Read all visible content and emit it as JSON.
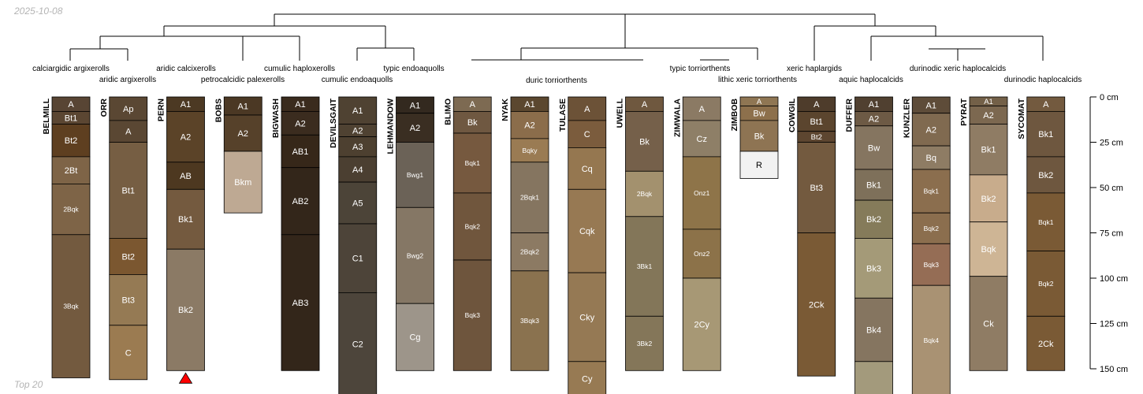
{
  "date": "2025-10-08",
  "footer": "Top 20",
  "chart_data": {
    "type": "soil-profile-sketch",
    "depth_unit": "cm",
    "depth_axis": {
      "ticks": [
        0,
        25,
        50,
        75,
        100,
        125,
        150
      ],
      "labels": [
        "0 cm",
        "25 cm",
        "50 cm",
        "75 cm",
        "100 cm",
        "125 cm",
        "150 cm"
      ]
    },
    "classification_labels": [
      "calciargidic argixerolls",
      "aridic argixerolls",
      "aridic calcixerolls",
      "petrocalcidic palexerolls",
      "cumulic haploxerolls",
      "cumulic endoaquolls",
      "typic endoaquolls",
      "duric torriorthents",
      "typic torriorthents",
      "lithic xeric torriorthents",
      "xeric haplargids",
      "aquic haplocalcids",
      "durinodic xeric haplocalcids",
      "durinodic haplocalcids"
    ],
    "profiles": [
      {
        "name": "BELMILL",
        "horizons": [
          {
            "name": "A",
            "top": 0,
            "bottom": 8,
            "color": "#584534"
          },
          {
            "name": "Bt1",
            "top": 8,
            "bottom": 15,
            "color": "#5b4632"
          },
          {
            "name": "Bt2",
            "top": 15,
            "bottom": 33,
            "color": "#5e3f20"
          },
          {
            "name": "2Bt",
            "top": 33,
            "bottom": 48,
            "color": "#7e6447"
          },
          {
            "name": "2Bqk",
            "top": 48,
            "bottom": 76,
            "color": "#7e6447"
          },
          {
            "name": "3Bqk",
            "top": 76,
            "bottom": 155,
            "color": "#735a3f"
          }
        ]
      },
      {
        "name": "ORR",
        "horizons": [
          {
            "name": "Ap",
            "top": 0,
            "bottom": 13,
            "color": "#5a4733"
          },
          {
            "name": "A",
            "top": 13,
            "bottom": 25,
            "color": "#5a4733"
          },
          {
            "name": "Bt1",
            "top": 25,
            "bottom": 78,
            "color": "#765e43"
          },
          {
            "name": "Bt2",
            "top": 78,
            "bottom": 98,
            "color": "#7b5730"
          },
          {
            "name": "Bt3",
            "top": 98,
            "bottom": 126,
            "color": "#957a54"
          },
          {
            "name": "C",
            "top": 126,
            "bottom": 156,
            "color": "#9b7b51"
          }
        ]
      },
      {
        "name": "PERN",
        "horizons": [
          {
            "name": "A1",
            "top": 0,
            "bottom": 8,
            "color": "#4c3923"
          },
          {
            "name": "A2",
            "top": 8,
            "bottom": 36,
            "color": "#5b4328"
          },
          {
            "name": "AB",
            "top": 36,
            "bottom": 51,
            "color": "#4d3820"
          },
          {
            "name": "Bk1",
            "top": 51,
            "bottom": 84,
            "color": "#745a3f"
          },
          {
            "name": "Bk2",
            "top": 84,
            "bottom": 151,
            "color": "#8b7a65"
          }
        ]
      },
      {
        "name": "BOBS",
        "horizons": [
          {
            "name": "A1",
            "top": 0,
            "bottom": 10,
            "color": "#4b3824"
          },
          {
            "name": "A2",
            "top": 10,
            "bottom": 30,
            "color": "#56412a"
          },
          {
            "name": "Bkm",
            "top": 30,
            "bottom": 64,
            "color": "#bea993"
          }
        ]
      },
      {
        "name": "BIGWASH",
        "horizons": [
          {
            "name": "A1",
            "top": 0,
            "bottom": 8,
            "color": "#3a2b1d"
          },
          {
            "name": "A2",
            "top": 8,
            "bottom": 21,
            "color": "#3b2c1f"
          },
          {
            "name": "AB1",
            "top": 21,
            "bottom": 39,
            "color": "#362719"
          },
          {
            "name": "AB2",
            "top": 39,
            "bottom": 76,
            "color": "#33261a"
          },
          {
            "name": "AB3",
            "top": 76,
            "bottom": 151,
            "color": "#33261a"
          }
        ]
      },
      {
        "name": "DEVILSGAIT",
        "horizons": [
          {
            "name": "A1",
            "top": 0,
            "bottom": 15,
            "color": "#4f4232"
          },
          {
            "name": "A2",
            "top": 15,
            "bottom": 22,
            "color": "#4f4232"
          },
          {
            "name": "A3",
            "top": 22,
            "bottom": 33,
            "color": "#4d4030"
          },
          {
            "name": "A4",
            "top": 33,
            "bottom": 47,
            "color": "#4b3f31"
          },
          {
            "name": "A5",
            "top": 47,
            "bottom": 70,
            "color": "#4c4438"
          },
          {
            "name": "C1",
            "top": 70,
            "bottom": 108,
            "color": "#4d4439"
          },
          {
            "name": "C2",
            "top": 108,
            "bottom": 168,
            "color": "#4d453b"
          }
        ]
      },
      {
        "name": "LEHMANDOW",
        "horizons": [
          {
            "name": "A1",
            "top": 0,
            "bottom": 9,
            "color": "#33291f"
          },
          {
            "name": "A2",
            "top": 9,
            "bottom": 25,
            "color": "#3a2e22"
          },
          {
            "name": "Bwg1",
            "top": 25,
            "bottom": 61,
            "color": "#6b6257"
          },
          {
            "name": "Bwg2",
            "top": 61,
            "bottom": 114,
            "color": "#857765"
          },
          {
            "name": "Cg",
            "top": 114,
            "bottom": 151,
            "color": "#9d958a"
          }
        ]
      },
      {
        "name": "BLIMO",
        "horizons": [
          {
            "name": "A",
            "top": 0,
            "bottom": 8,
            "color": "#7d6a52"
          },
          {
            "name": "Bk",
            "top": 8,
            "bottom": 20,
            "color": "#6f5841"
          },
          {
            "name": "Bqk1",
            "top": 20,
            "bottom": 53,
            "color": "#76593f"
          },
          {
            "name": "Bqk2",
            "top": 53,
            "bottom": 90,
            "color": "#70563d"
          },
          {
            "name": "Bqk3",
            "top": 90,
            "bottom": 151,
            "color": "#6e553d"
          }
        ]
      },
      {
        "name": "NYAK",
        "horizons": [
          {
            "name": "A1",
            "top": 0,
            "bottom": 8,
            "color": "#5b472f"
          },
          {
            "name": "A2",
            "top": 8,
            "bottom": 23,
            "color": "#8b6d4b"
          },
          {
            "name": "Bqky",
            "top": 23,
            "bottom": 36,
            "color": "#9a7b53"
          },
          {
            "name": "2Bqk1",
            "top": 36,
            "bottom": 75,
            "color": "#857560"
          },
          {
            "name": "2Bqk2",
            "top": 75,
            "bottom": 96,
            "color": "#8c7a63"
          },
          {
            "name": "3Bqk3",
            "top": 96,
            "bottom": 151,
            "color": "#8a724f"
          }
        ]
      },
      {
        "name": "TULASE",
        "horizons": [
          {
            "name": "A",
            "top": 0,
            "bottom": 13,
            "color": "#6c5237"
          },
          {
            "name": "C",
            "top": 13,
            "bottom": 28,
            "color": "#7b5c3d"
          },
          {
            "name": "Cq",
            "top": 28,
            "bottom": 51,
            "color": "#957750"
          },
          {
            "name": "Cqk",
            "top": 51,
            "bottom": 97,
            "color": "#977953"
          },
          {
            "name": "Cky",
            "top": 97,
            "bottom": 146,
            "color": "#957954"
          },
          {
            "name": "Cy",
            "top": 146,
            "bottom": 172,
            "color": "#977a53"
          }
        ]
      },
      {
        "name": "UWELL",
        "horizons": [
          {
            "name": "A",
            "top": 0,
            "bottom": 8,
            "color": "#6f583f"
          },
          {
            "name": "Bk",
            "top": 8,
            "bottom": 41,
            "color": "#75604a"
          },
          {
            "name": "2Bqk",
            "top": 41,
            "bottom": 66,
            "color": "#a3916e"
          },
          {
            "name": "3Bk1",
            "top": 66,
            "bottom": 121,
            "color": "#837659"
          },
          {
            "name": "3Bk2",
            "top": 121,
            "bottom": 151,
            "color": "#847659"
          }
        ]
      },
      {
        "name": "ZIMWALA",
        "horizons": [
          {
            "name": "A",
            "top": 0,
            "bottom": 13,
            "color": "#8b7a64"
          },
          {
            "name": "Cz",
            "top": 13,
            "bottom": 33,
            "color": "#8e7f67"
          },
          {
            "name": "Onz1",
            "top": 33,
            "bottom": 73,
            "color": "#8e7449"
          },
          {
            "name": "Onz2",
            "top": 73,
            "bottom": 100,
            "color": "#8c7249"
          },
          {
            "name": "2Cy",
            "top": 100,
            "bottom": 151,
            "color": "#a79875"
          }
        ]
      },
      {
        "name": "ZIMBOB",
        "horizons": [
          {
            "name": "A",
            "top": 0,
            "bottom": 5,
            "color": "#8f7653"
          },
          {
            "name": "Bw",
            "top": 5,
            "bottom": 13,
            "color": "#8d704c"
          },
          {
            "name": "Bk",
            "top": 13,
            "bottom": 30,
            "color": "#8e7453"
          },
          {
            "name": "R",
            "top": 30,
            "bottom": 45,
            "color": "#f2f2f2"
          }
        ]
      },
      {
        "name": "COWGIL",
        "horizons": [
          {
            "name": "A",
            "top": 0,
            "bottom": 8,
            "color": "#4e3c2b"
          },
          {
            "name": "Bt1",
            "top": 8,
            "bottom": 19,
            "color": "#5b452e"
          },
          {
            "name": "Bt2",
            "top": 19,
            "bottom": 25,
            "color": "#5d4630"
          },
          {
            "name": "Bt3",
            "top": 25,
            "bottom": 75,
            "color": "#735a3f"
          },
          {
            "name": "2Ck",
            "top": 75,
            "bottom": 154,
            "color": "#7a5a35"
          }
        ]
      },
      {
        "name": "DUFFER",
        "horizons": [
          {
            "name": "A1",
            "top": 0,
            "bottom": 8,
            "color": "#504030"
          },
          {
            "name": "A2",
            "top": 8,
            "bottom": 16,
            "color": "#6d5a45"
          },
          {
            "name": "Bw",
            "top": 16,
            "bottom": 40,
            "color": "#857560"
          },
          {
            "name": "Bk1",
            "top": 40,
            "bottom": 57,
            "color": "#7e705a"
          },
          {
            "name": "Bk2",
            "top": 57,
            "bottom": 78,
            "color": "#857b5a"
          },
          {
            "name": "Bk3",
            "top": 78,
            "bottom": 111,
            "color": "#a49a78"
          },
          {
            "name": "Bk4",
            "top": 111,
            "bottom": 146,
            "color": "#857560"
          },
          {
            "name": "",
            "top": 146,
            "bottom": 172,
            "color": "#a39a7c"
          }
        ]
      },
      {
        "name": "KUNZLER",
        "horizons": [
          {
            "name": "A1",
            "top": 0,
            "bottom": 9,
            "color": "#5e4c39"
          },
          {
            "name": "A2",
            "top": 9,
            "bottom": 27,
            "color": "#806a50"
          },
          {
            "name": "Bq",
            "top": 27,
            "bottom": 40,
            "color": "#8e7c64"
          },
          {
            "name": "Bqk1",
            "top": 40,
            "bottom": 64,
            "color": "#8b6e4e"
          },
          {
            "name": "Bqk2",
            "top": 64,
            "bottom": 81,
            "color": "#8b6e4e"
          },
          {
            "name": "Bqk3",
            "top": 81,
            "bottom": 104,
            "color": "#956d55"
          },
          {
            "name": "Bqk4",
            "top": 104,
            "bottom": 172,
            "color": "#a99273"
          }
        ]
      },
      {
        "name": "PYRAT",
        "horizons": [
          {
            "name": "A1",
            "top": 0,
            "bottom": 5,
            "color": "#736048"
          },
          {
            "name": "A2",
            "top": 5,
            "bottom": 15,
            "color": "#7c6850"
          },
          {
            "name": "Bk1",
            "top": 15,
            "bottom": 43,
            "color": "#8f7c64"
          },
          {
            "name": "Bk2",
            "top": 43,
            "bottom": 69,
            "color": "#c8ac8c"
          },
          {
            "name": "Bqk",
            "top": 69,
            "bottom": 99,
            "color": "#ceb595"
          },
          {
            "name": "Ck",
            "top": 99,
            "bottom": 151,
            "color": "#8f7c64"
          }
        ]
      },
      {
        "name": "SYCOMAT",
        "horizons": [
          {
            "name": "A",
            "top": 0,
            "bottom": 8,
            "color": "#735a3f"
          },
          {
            "name": "Bk1",
            "top": 8,
            "bottom": 33,
            "color": "#6e573f"
          },
          {
            "name": "Bk2",
            "top": 33,
            "bottom": 53,
            "color": "#6e573f"
          },
          {
            "name": "Bqk1",
            "top": 53,
            "bottom": 85,
            "color": "#7a5a35"
          },
          {
            "name": "Bqk2",
            "top": 85,
            "bottom": 121,
            "color": "#7a5a35"
          },
          {
            "name": "2Ck",
            "top": 121,
            "bottom": 151,
            "color": "#7a5a35"
          }
        ]
      }
    ],
    "markers": [
      {
        "profile": "PERN",
        "shape": "triangle",
        "color": "#ff0000"
      }
    ]
  }
}
